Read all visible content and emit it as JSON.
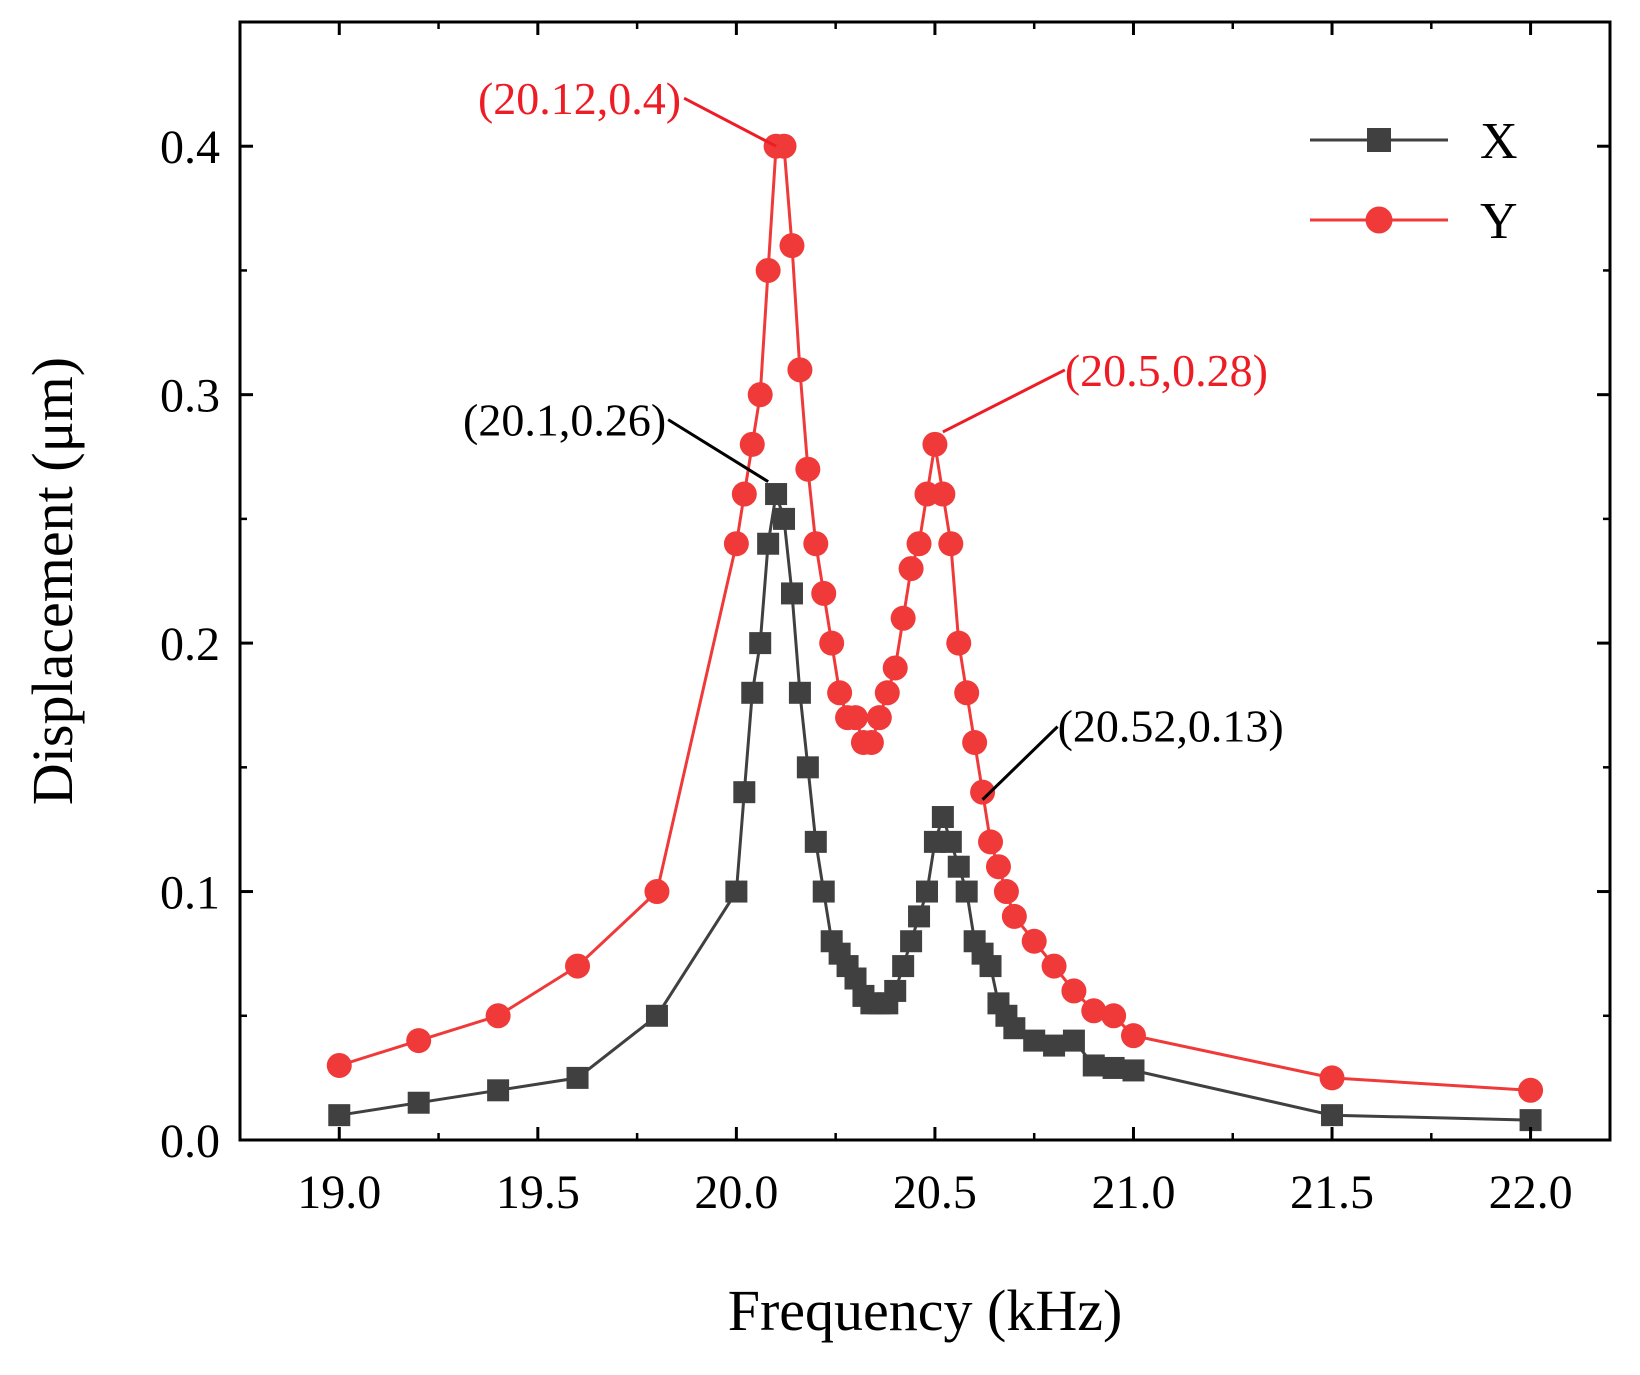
{
  "chart_data": {
    "type": "line",
    "title": "",
    "xlabel": "Frequency (kHz)",
    "ylabel": "Displacement (μm)",
    "xlim": [
      18.75,
      22.2
    ],
    "ylim": [
      0.0,
      0.45
    ],
    "x_ticks": [
      19.0,
      19.5,
      20.0,
      20.5,
      21.0,
      21.5,
      22.0
    ],
    "x_tick_labels": [
      "19.0",
      "19.5",
      "20.0",
      "20.5",
      "21.0",
      "21.5",
      "22.0"
    ],
    "y_ticks": [
      0.0,
      0.1,
      0.2,
      0.3,
      0.4
    ],
    "y_tick_labels": [
      "0.0",
      "0.1",
      "0.2",
      "0.3",
      "0.4"
    ],
    "grid": false,
    "legend_position": "top-right",
    "series": [
      {
        "name": "X",
        "marker": "square",
        "color": "#404040",
        "x": [
          19.0,
          19.2,
          19.4,
          19.6,
          19.8,
          20.0,
          20.02,
          20.04,
          20.06,
          20.08,
          20.1,
          20.12,
          20.14,
          20.16,
          20.18,
          20.2,
          20.22,
          20.24,
          20.26,
          20.28,
          20.3,
          20.32,
          20.34,
          20.36,
          20.38,
          20.4,
          20.42,
          20.44,
          20.46,
          20.48,
          20.5,
          20.52,
          20.54,
          20.56,
          20.58,
          20.6,
          20.62,
          20.64,
          20.66,
          20.68,
          20.7,
          20.75,
          20.8,
          20.85,
          20.9,
          20.95,
          21.0,
          21.5,
          22.0
        ],
        "y": [
          0.01,
          0.015,
          0.02,
          0.025,
          0.05,
          0.1,
          0.14,
          0.18,
          0.2,
          0.24,
          0.26,
          0.25,
          0.22,
          0.18,
          0.15,
          0.12,
          0.1,
          0.08,
          0.075,
          0.07,
          0.065,
          0.058,
          0.055,
          0.055,
          0.055,
          0.06,
          0.07,
          0.08,
          0.09,
          0.1,
          0.12,
          0.13,
          0.12,
          0.11,
          0.1,
          0.08,
          0.075,
          0.07,
          0.055,
          0.05,
          0.045,
          0.04,
          0.038,
          0.04,
          0.03,
          0.029,
          0.028,
          0.01,
          0.008
        ]
      },
      {
        "name": "Y",
        "marker": "circle",
        "color": "#f03a3a",
        "x": [
          19.0,
          19.2,
          19.4,
          19.6,
          19.8,
          20.0,
          20.02,
          20.04,
          20.06,
          20.08,
          20.1,
          20.12,
          20.14,
          20.16,
          20.18,
          20.2,
          20.22,
          20.24,
          20.26,
          20.28,
          20.3,
          20.32,
          20.34,
          20.36,
          20.38,
          20.4,
          20.42,
          20.44,
          20.46,
          20.48,
          20.5,
          20.52,
          20.54,
          20.56,
          20.58,
          20.6,
          20.62,
          20.64,
          20.66,
          20.68,
          20.7,
          20.75,
          20.8,
          20.85,
          20.9,
          20.95,
          21.0,
          21.5,
          22.0
        ],
        "y": [
          0.03,
          0.04,
          0.05,
          0.07,
          0.1,
          0.24,
          0.26,
          0.28,
          0.3,
          0.35,
          0.4,
          0.4,
          0.36,
          0.31,
          0.27,
          0.24,
          0.22,
          0.2,
          0.18,
          0.17,
          0.17,
          0.16,
          0.16,
          0.17,
          0.18,
          0.19,
          0.21,
          0.23,
          0.24,
          0.26,
          0.28,
          0.26,
          0.24,
          0.2,
          0.18,
          0.16,
          0.14,
          0.12,
          0.11,
          0.1,
          0.09,
          0.08,
          0.07,
          0.06,
          0.052,
          0.05,
          0.042,
          0.025,
          0.02
        ]
      }
    ],
    "annotations": [
      {
        "text": "(20.12,0.4)",
        "color": "#ee1c25",
        "target": [
          20.1,
          0.4
        ],
        "anchor": "upper-left"
      },
      {
        "text": "(20.5,0.28)",
        "color": "#ee1c25",
        "target": [
          20.52,
          0.285
        ],
        "anchor": "upper-right"
      },
      {
        "text": "(20.1,0.26)",
        "color": "#000000",
        "target": [
          20.08,
          0.265
        ],
        "anchor": "left"
      },
      {
        "text": "(20.52,0.13)",
        "color": "#000000",
        "target": [
          20.62,
          0.137
        ],
        "anchor": "right"
      }
    ]
  }
}
